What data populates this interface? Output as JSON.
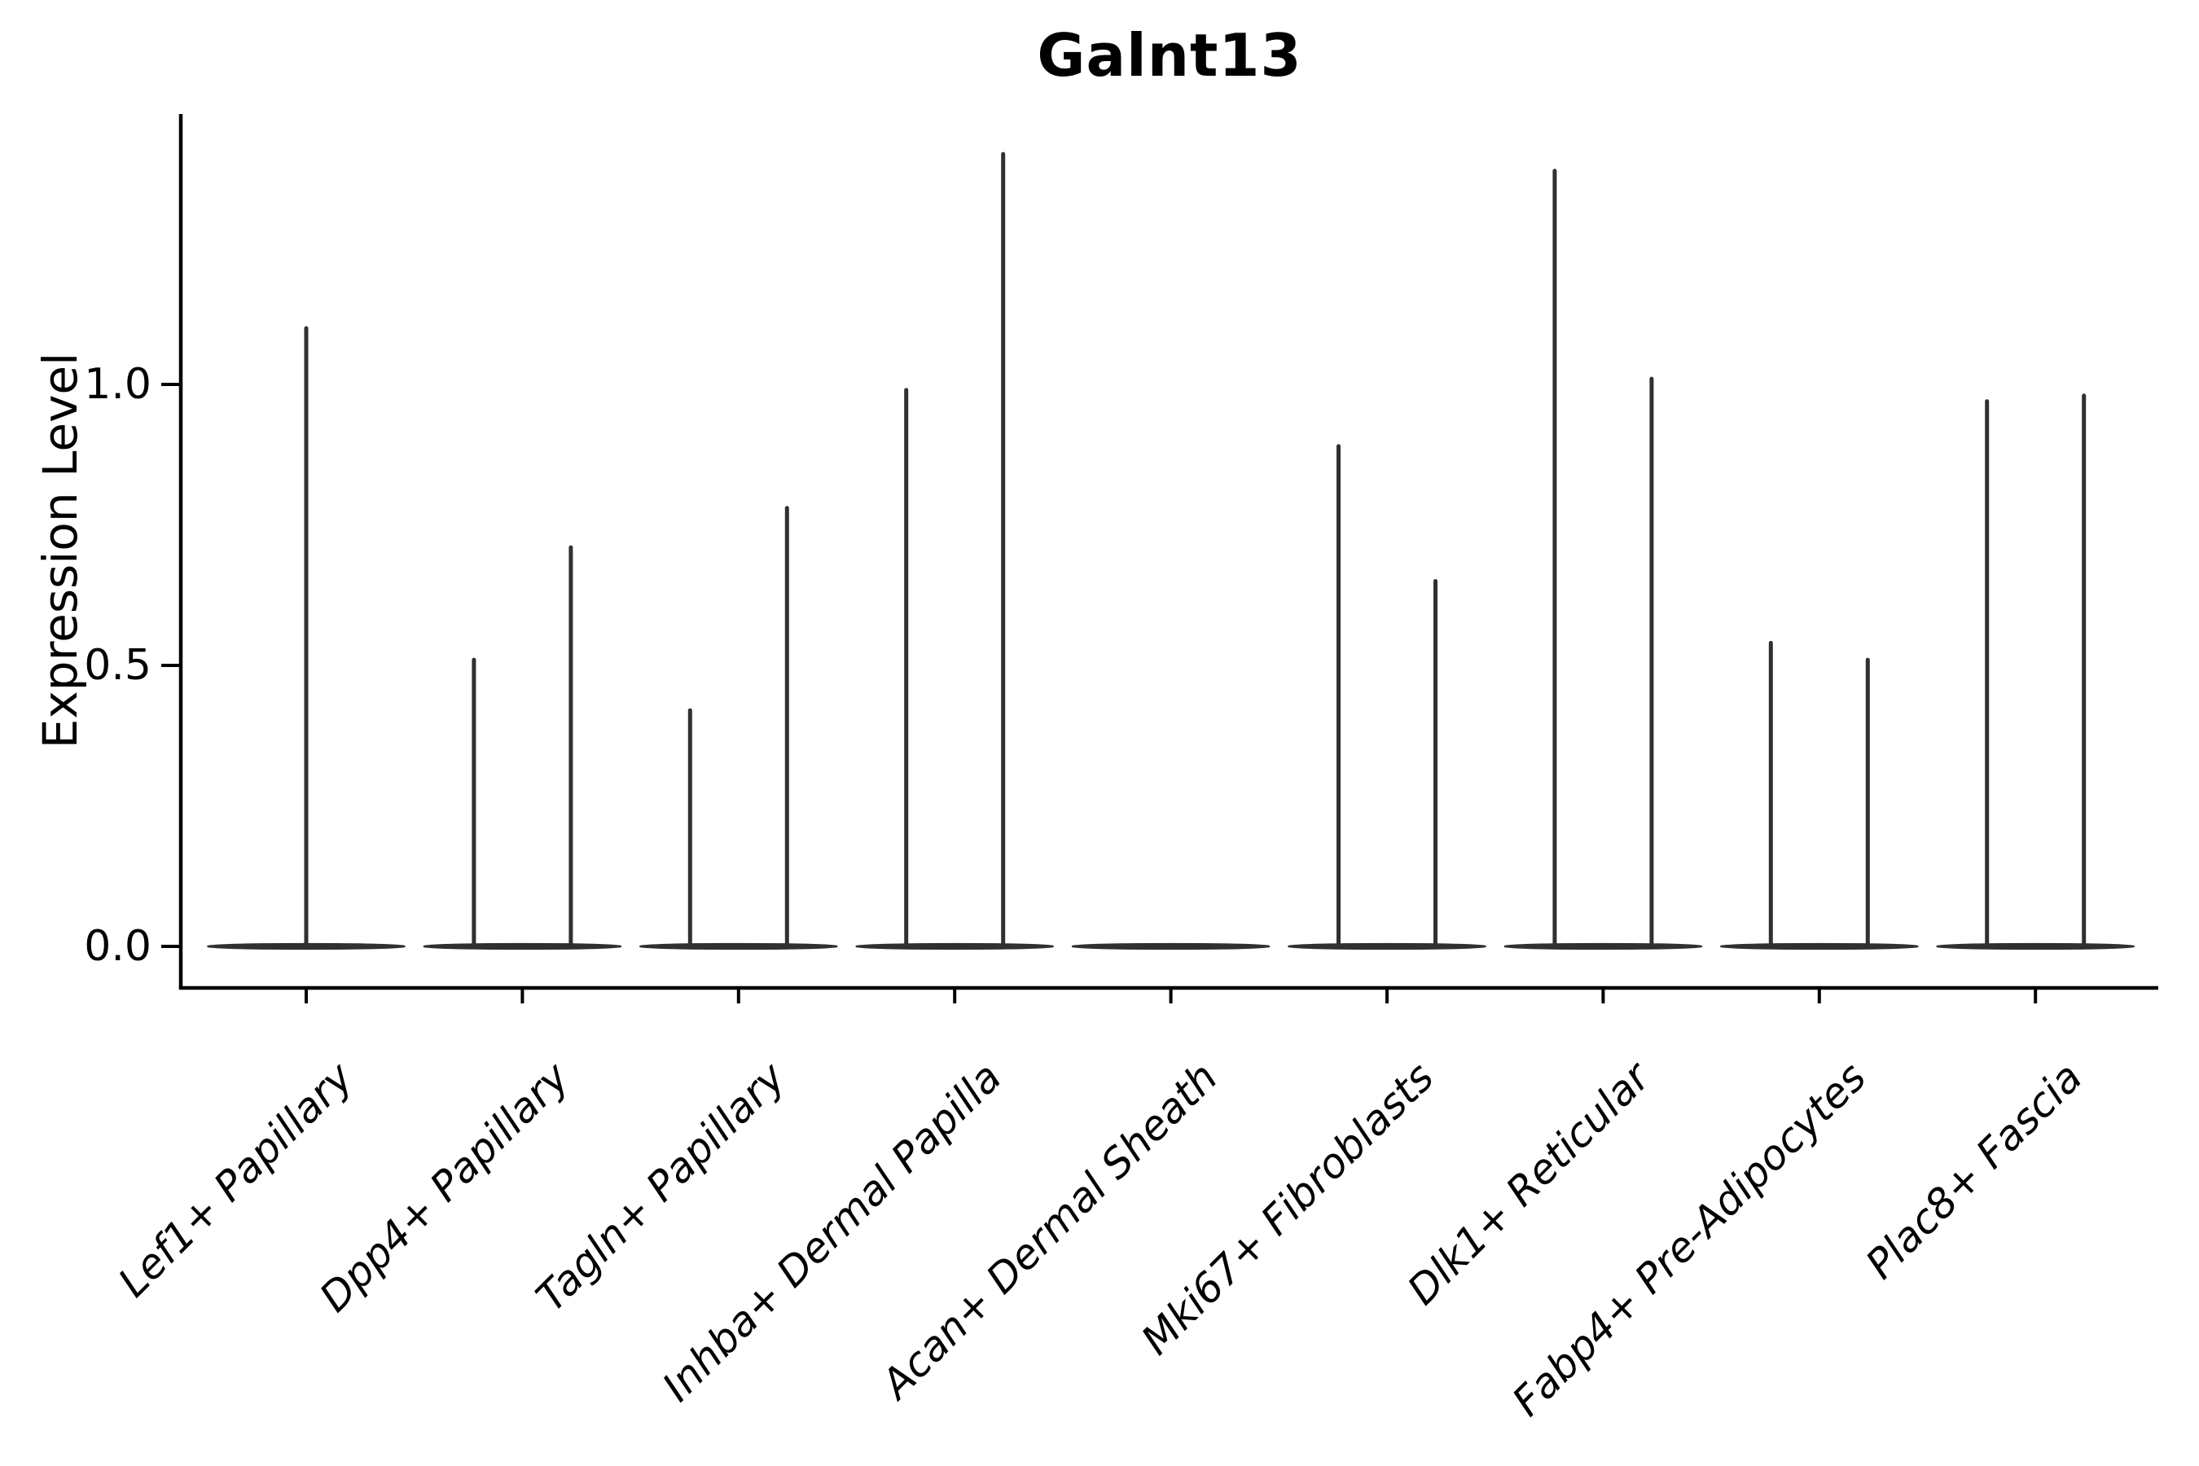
{
  "figure": {
    "title": "Galnt13",
    "background_color": "#ffffff",
    "text_color": "#000000"
  },
  "y_axis": {
    "label": "Expression Level",
    "tick_labels": [
      "1.0",
      "0.5",
      "0.0"
    ],
    "tick_values": [
      1.0,
      0.5,
      0.0
    ]
  },
  "x_axis": {
    "tick_labels": [
      "Lef1+ Papillary",
      "Dpp4+ Papillary",
      "Tagln+ Papillary",
      "Inhba+ Dermal Papilla",
      "Acan+ Dermal Sheath",
      "Mki67+ Fibroblasts",
      "Dlk1+ Reticular",
      "Fabp4+ Pre-Adipocytes",
      "Plac8+ Fascia"
    ],
    "label_rotation_degrees": 45
  },
  "chart_data": {
    "type": "violin",
    "title": "Galnt13",
    "xlabel": "",
    "ylabel": "Expression Level",
    "ylim": [
      -0.07,
      1.48
    ],
    "yticks": [
      0.0,
      0.5,
      1.0
    ],
    "grid": false,
    "legend": false,
    "violin_color": "#303030",
    "categories": [
      "Lef1+ Papillary",
      "Dpp4+ Papillary",
      "Tagln+ Papillary",
      "Inhba+ Dermal Papilla",
      "Acan+ Dermal Sheath",
      "Mki67+ Fibroblasts",
      "Dlk1+ Reticular",
      "Fabp4+ Pre-Adipocytes",
      "Plac8+ Fascia"
    ],
    "violins": [
      {
        "category": "Lef1+ Papillary",
        "arrangement": "single",
        "spike_max_values": [
          1.1
        ]
      },
      {
        "category": "Dpp4+ Papillary",
        "arrangement": "pair",
        "spike_max_values": [
          0.51,
          0.71
        ]
      },
      {
        "category": "Tagln+ Papillary",
        "arrangement": "pair",
        "spike_max_values": [
          0.42,
          0.78
        ]
      },
      {
        "category": "Inhba+ Dermal Papilla",
        "arrangement": "pair",
        "spike_max_values": [
          0.99,
          1.41
        ]
      },
      {
        "category": "Acan+ Dermal Sheath",
        "arrangement": "none",
        "spike_max_values": []
      },
      {
        "category": "Mki67+ Fibroblasts",
        "arrangement": "pair",
        "spike_max_values": [
          0.89,
          0.65
        ]
      },
      {
        "category": "Dlk1+ Reticular",
        "arrangement": "pair",
        "spike_max_values": [
          1.38,
          1.01
        ]
      },
      {
        "category": "Fabp4+ Pre-Adipocytes",
        "arrangement": "pair",
        "spike_max_values": [
          0.54,
          0.51
        ]
      },
      {
        "category": "Plac8+ Fascia",
        "arrangement": "pair",
        "spike_max_values": [
          0.97,
          0.98
        ]
      }
    ],
    "shape_note": "Each violin is almost entirely density at expression 0 (flat horizontal base) with a hair-thin tail rising to its maximum value."
  }
}
